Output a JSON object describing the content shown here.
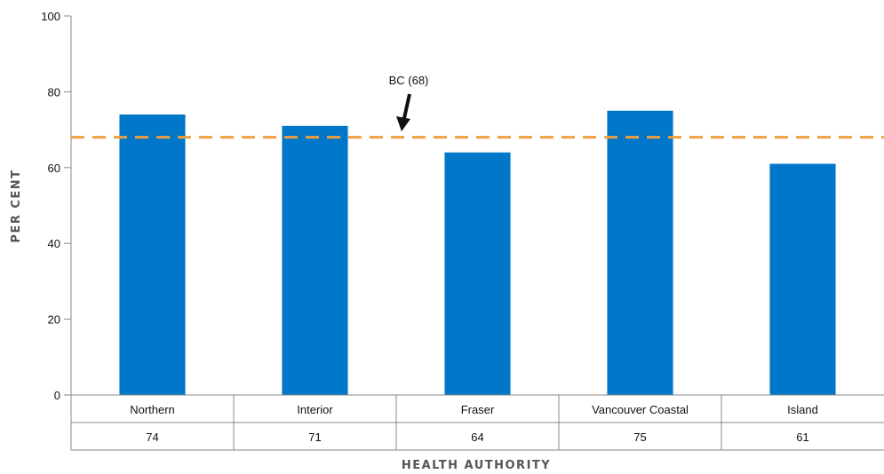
{
  "chart_data": {
    "type": "bar",
    "title": "",
    "xlabel": "HEALTH AUTHORITY",
    "ylabel": "PER CENT",
    "ylim": [
      0,
      100
    ],
    "yticks": [
      0,
      20,
      40,
      60,
      80,
      100
    ],
    "grid": false,
    "categories": [
      "Northern",
      "Interior",
      "Fraser",
      "Vancouver Coastal",
      "Island"
    ],
    "values": [
      74,
      71,
      64,
      75,
      61
    ],
    "value_labels": [
      "74",
      "71",
      "64",
      "75",
      "61"
    ],
    "bar_color": "#0077c8",
    "reference_line": {
      "value": 68,
      "label": "BC (68)",
      "color": "#f0a040",
      "style": "dashed"
    }
  }
}
